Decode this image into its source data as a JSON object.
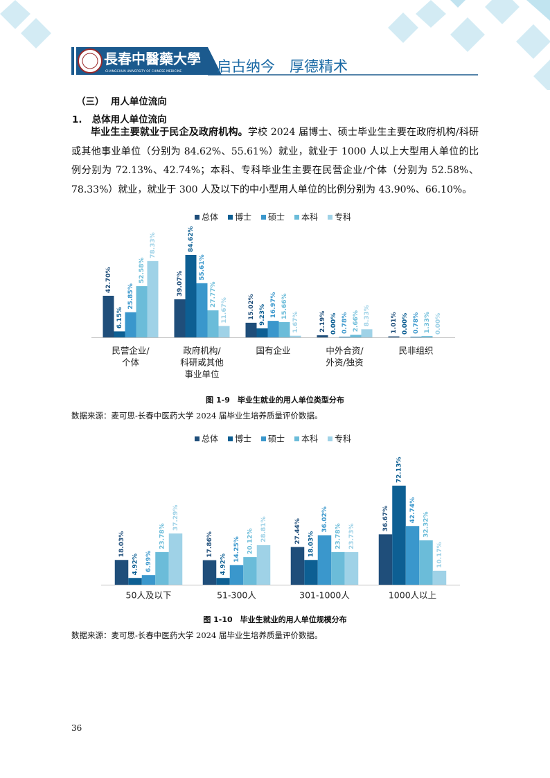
{
  "header": {
    "logo_text": "長春中醫藥大學",
    "logo_subtitle": "CHANGCHUN UNIVERSITY OF CHINESE MEDICINE",
    "slogan": "启古纳今　厚德精术"
  },
  "section": {
    "heading_num": "（三）",
    "heading": "用人单位流向",
    "sub_num": "1.",
    "sub": "总体用人单位流向",
    "lead": "毕业生主要就业于民企及政府机构。",
    "body": "学校 2024 届博士、硕士毕业生主要在政府机构/科研或其他事业单位（分别为 84.62%、55.61%）就业，就业于 1000 人以上大型用人单位的比例分别为 72.13%、42.74%；本科、专科毕业生主要在民营企业/个体（分别为 52.58%、78.33%）就业，就业于 300 人及以下的中小型用人单位的比例分别为 43.90%、66.10%。"
  },
  "chart_data": [
    {
      "type": "bar",
      "title": "图 1-9　毕业生就业的用人单位类型分布",
      "source": "数据来源：麦可思-长春中医药大学 2024 届毕业生培养质量评价数据。",
      "categories": [
        [
          "民营企业/",
          "个体"
        ],
        [
          "政府机构/",
          "科研或其他",
          "事业单位"
        ],
        [
          "国有企业"
        ],
        [
          "中外合资/",
          "外资/独资"
        ],
        [
          "民非组织"
        ]
      ],
      "series": [
        {
          "name": "总体",
          "color": "#1f4e7a",
          "values": [
            42.7,
            39.07,
            15.02,
            2.19,
            1.01
          ],
          "value_labels": [
            "42.70%",
            "39.07%",
            "15.02%",
            "2.19%",
            "1.01%"
          ]
        },
        {
          "name": "博士",
          "color": "#0d5f93",
          "values": [
            6.15,
            84.62,
            9.23,
            0.0,
            0.0
          ],
          "value_labels": [
            "6.15%",
            "84.62%",
            "9.23%",
            "0.00%",
            "0.00%"
          ]
        },
        {
          "name": "硕士",
          "color": "#3a97cc",
          "values": [
            25.85,
            55.61,
            16.97,
            0.78,
            0.78
          ],
          "value_labels": [
            "25.85%",
            "55.61%",
            "16.97%",
            "0.78%",
            "0.78%"
          ]
        },
        {
          "name": "本科",
          "color": "#6bbcd9",
          "values": [
            52.58,
            27.77,
            15.66,
            2.66,
            1.33
          ],
          "value_labels": [
            "52.58%",
            "27.77%",
            "15.66%",
            "2.66%",
            "1.33%"
          ]
        },
        {
          "name": "专科",
          "color": "#9fd2e7",
          "values": [
            78.33,
            11.67,
            1.67,
            8.33,
            0.0
          ],
          "value_labels": [
            "78.33%",
            "11.67%",
            "1.67%",
            "8.33%",
            "0.00%"
          ]
        }
      ],
      "legend": "top"
    },
    {
      "type": "bar",
      "title": "图 1-10　毕业生就业的用人单位规模分布",
      "source": "数据来源：麦可思-长春中医药大学 2024 届毕业生培养质量评价数据。",
      "categories": [
        [
          "50人及以下"
        ],
        [
          "51-300人"
        ],
        [
          "301-1000人"
        ],
        [
          "1000人以上"
        ]
      ],
      "series": [
        {
          "name": "总体",
          "color": "#1f4e7a",
          "values": [
            18.03,
            17.86,
            27.44,
            36.67
          ],
          "value_labels": [
            "18.03%",
            "17.86%",
            "27.44%",
            "36.67%"
          ]
        },
        {
          "name": "博士",
          "color": "#0d5f93",
          "values": [
            4.92,
            4.92,
            18.03,
            72.13
          ],
          "value_labels": [
            "4.92%",
            "4.92%",
            "18.03%",
            "72.13%"
          ]
        },
        {
          "name": "硕士",
          "color": "#3a97cc",
          "values": [
            6.99,
            14.25,
            36.02,
            42.74
          ],
          "value_labels": [
            "6.99%",
            "14.25%",
            "36.02%",
            "42.74%"
          ]
        },
        {
          "name": "本科",
          "color": "#6bbcd9",
          "values": [
            23.78,
            20.12,
            23.78,
            32.32
          ],
          "value_labels": [
            "23.78%",
            "20.12%",
            "23.78%",
            "32.32%"
          ]
        },
        {
          "name": "专科",
          "color": "#9fd2e7",
          "values": [
            37.29,
            28.81,
            23.73,
            10.17
          ],
          "value_labels": [
            "37.29%",
            "28.81%",
            "23.73%",
            "10.17%"
          ]
        }
      ],
      "legend": "top"
    }
  ],
  "page_number": "36"
}
